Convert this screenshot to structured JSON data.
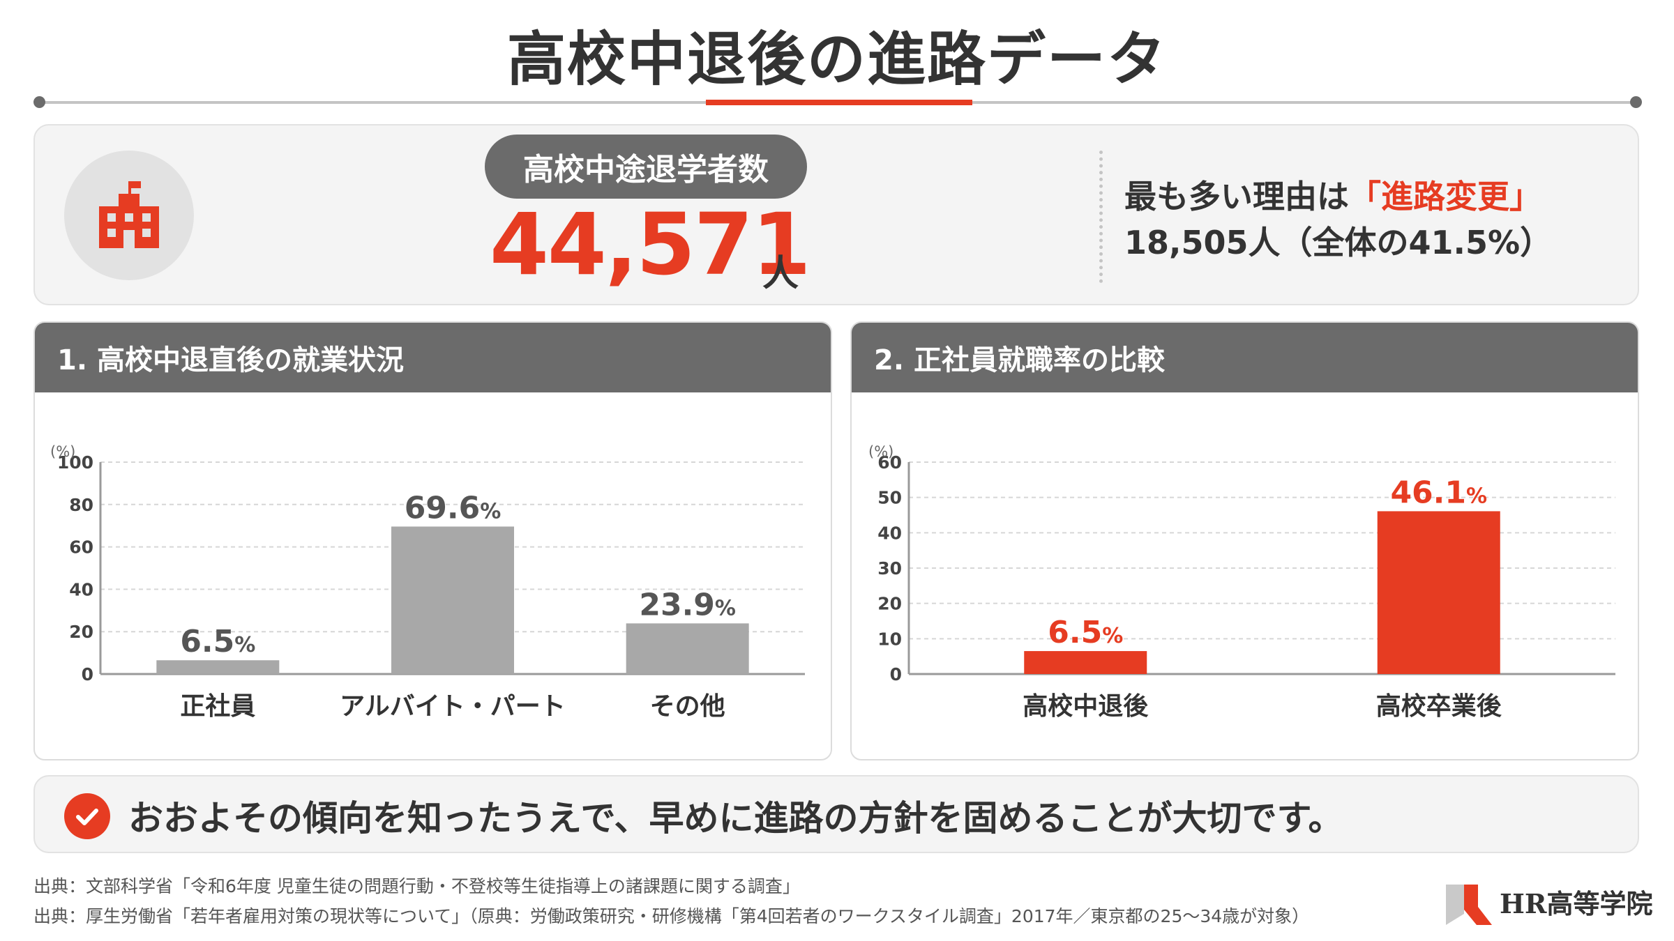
{
  "title": "高校中退後の進路データ",
  "colors": {
    "accent": "#e63c22",
    "gray_bar": "#a8a8a8",
    "header": "#6b6b6b"
  },
  "summary": {
    "icon": "school-building-icon",
    "label": "高校中途退学者数",
    "value": "44,571",
    "unit": "人",
    "reason_prefix": "最も多い理由は",
    "reason_highlight": "「進路変更」",
    "reason_detail": "18,505人（全体の41.5%）"
  },
  "panel1": {
    "title": "1. 高校中退直後の就業状況"
  },
  "panel2": {
    "title": "2. 正社員就職率の比較"
  },
  "chart_data": [
    {
      "type": "bar",
      "title": "1. 高校中退直後の就業状況",
      "categories": [
        "正社員",
        "アルバイト・パート",
        "その他"
      ],
      "values": [
        6.5,
        69.6,
        23.9
      ],
      "value_labels": [
        "6.5",
        "69.6",
        "23.9"
      ],
      "value_suffix": "%",
      "ylabel": "(%)",
      "ylim": [
        0,
        100
      ],
      "yticks": [
        "0",
        "20",
        "40",
        "60",
        "80",
        "100"
      ],
      "bar_color": "#a8a8a8",
      "label_color": "#555555",
      "grid": true
    },
    {
      "type": "bar",
      "title": "2. 正社員就職率の比較",
      "categories": [
        "高校中退後",
        "高校卒業後"
      ],
      "values": [
        6.5,
        46.1
      ],
      "value_labels": [
        "6.5",
        "46.1"
      ],
      "value_suffix": "%",
      "ylabel": "(%)",
      "ylim": [
        0,
        60
      ],
      "yticks": [
        "0",
        "10",
        "20",
        "30",
        "40",
        "50",
        "60"
      ],
      "bar_color": "#e63c22",
      "label_color": "#e63c22",
      "grid": true
    }
  ],
  "message": {
    "icon": "check-icon",
    "text": "おおよその傾向を知ったうえで、早めに進路の方針を固めることが大切です。"
  },
  "sources": [
    "出典：文部科学省「令和6年度 児童生徒の問題行動・不登校等生徒指導上の諸課題に関する調査」",
    "出典：厚生労働省「若年者雇用対策の現状等について」（原典：労働政策研究・研修機構「第4回若者のワークスタイル調査」2017年／東京都の25〜34歳が対象）"
  ],
  "logo": {
    "text": "HR高等学院",
    "icon": "hr-logo-mark"
  }
}
